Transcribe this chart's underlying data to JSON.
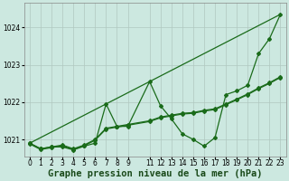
{
  "background_color": "#cce8e0",
  "plot_bg_color": "#cce8e0",
  "grid_color": "#b0c8c0",
  "line_color": "#1a6b1a",
  "title": "Graphe pression niveau de la mer (hPa)",
  "xlim": [
    -0.5,
    23.5
  ],
  "ylim": [
    1020.55,
    1024.65
  ],
  "yticks": [
    1021,
    1022,
    1023,
    1024
  ],
  "xtick_vals": [
    0,
    1,
    2,
    3,
    4,
    5,
    6,
    7,
    8,
    9,
    11,
    12,
    13,
    14,
    15,
    16,
    17,
    18,
    19,
    20,
    21,
    22,
    23
  ],
  "xtick_labels": [
    "0",
    "1",
    "2",
    "3",
    "4",
    "5",
    "6",
    "7",
    "8",
    "9",
    "11",
    "12",
    "13",
    "14",
    "15",
    "16",
    "17",
    "18",
    "19",
    "20",
    "21",
    "22",
    "23"
  ],
  "line1_x": [
    0,
    1,
    2,
    3,
    4,
    5,
    6,
    7,
    8,
    9,
    11,
    12,
    13,
    14,
    15,
    16,
    17,
    18,
    19,
    20,
    21,
    22,
    23
  ],
  "line1_y": [
    1020.9,
    1020.75,
    1020.8,
    1020.8,
    1020.72,
    1020.82,
    1020.9,
    1021.95,
    1021.35,
    1021.35,
    1022.55,
    1021.9,
    1021.55,
    1021.15,
    1021.0,
    1020.82,
    1021.05,
    1022.2,
    1022.3,
    1022.45,
    1023.3,
    1023.7,
    1024.35
  ],
  "line2_x": [
    0,
    1,
    2,
    3,
    4,
    5,
    6,
    7,
    8,
    9,
    11,
    12,
    13,
    14,
    15,
    16,
    17,
    18,
    19,
    20,
    21,
    22,
    23
  ],
  "line2_y": [
    1020.9,
    1020.75,
    1020.8,
    1020.85,
    1020.75,
    1020.85,
    1021.0,
    1021.3,
    1021.35,
    1021.4,
    1021.5,
    1021.6,
    1021.65,
    1021.7,
    1021.72,
    1021.78,
    1021.82,
    1021.95,
    1022.08,
    1022.22,
    1022.38,
    1022.52,
    1022.68
  ],
  "line3_x": [
    0,
    1,
    2,
    3,
    4,
    5,
    6,
    7,
    8,
    9,
    11,
    12,
    13,
    14,
    15,
    16,
    17,
    18,
    19,
    20,
    21,
    22,
    23
  ],
  "line3_y": [
    1020.88,
    1020.73,
    1020.78,
    1020.83,
    1020.73,
    1020.83,
    1020.98,
    1021.28,
    1021.33,
    1021.38,
    1021.48,
    1021.58,
    1021.63,
    1021.68,
    1021.7,
    1021.76,
    1021.8,
    1021.93,
    1022.06,
    1022.2,
    1022.36,
    1022.5,
    1022.66
  ],
  "line4_x": [
    0,
    23
  ],
  "line4_y": [
    1020.9,
    1024.35
  ],
  "marker": "D",
  "markersize": 2.0,
  "linewidth": 0.9,
  "title_fontsize": 7.5,
  "tick_fontsize": 5.5
}
